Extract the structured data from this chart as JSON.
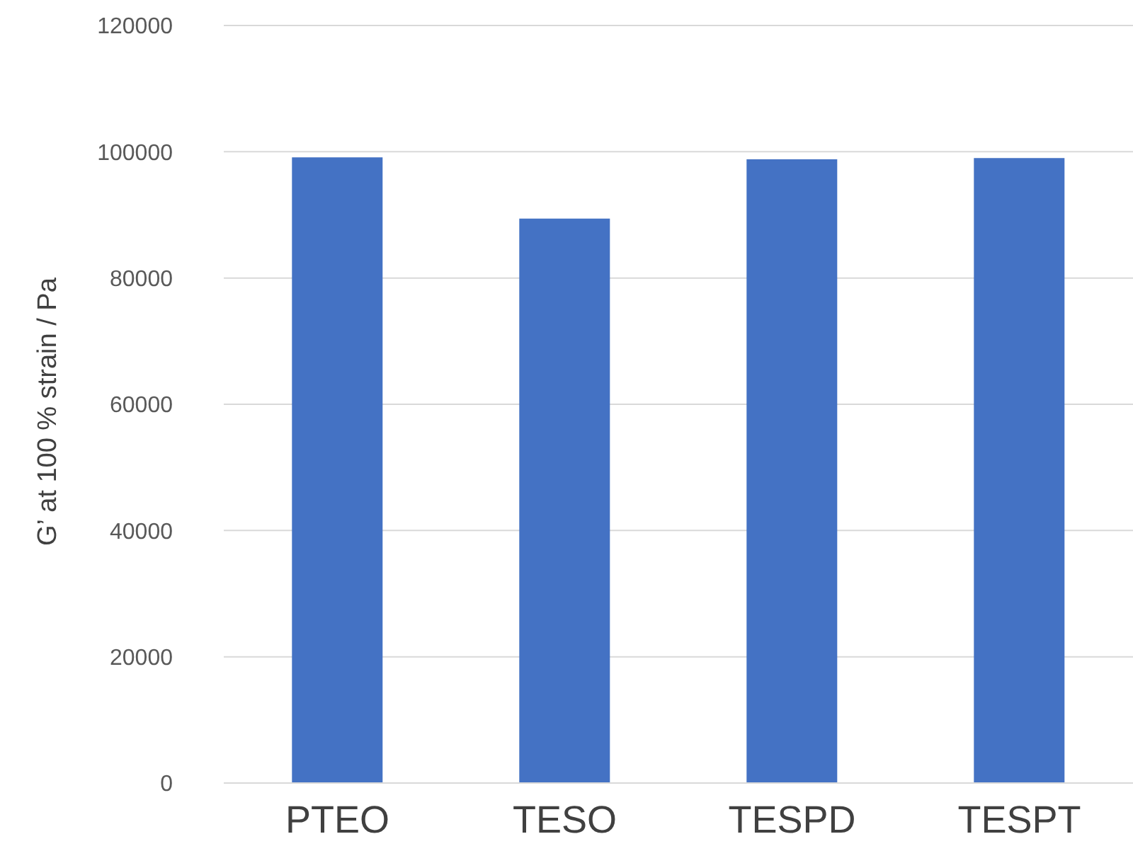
{
  "chart_data": {
    "type": "bar",
    "ylabel": "G’ at 100 % strain / Pa",
    "categories": [
      "PTEO",
      "TESO",
      "TESPD",
      "TESPT"
    ],
    "values": [
      99100,
      89400,
      98800,
      99000
    ],
    "color": "#4472c4",
    "ylim": [
      0,
      120000
    ],
    "yticks": [
      0,
      20000,
      40000,
      60000,
      80000,
      100000,
      120000
    ],
    "grid": "y",
    "legend": false
  }
}
